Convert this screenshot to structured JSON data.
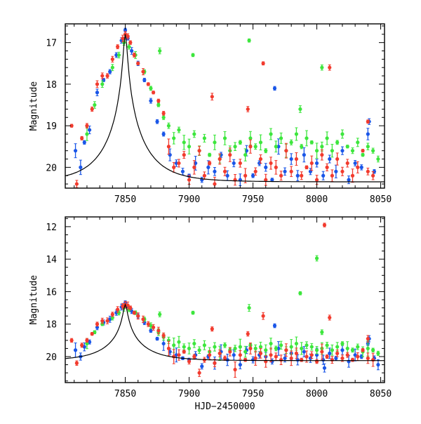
{
  "chart_data": [
    {
      "type": "scatter",
      "xlabel": "",
      "ylabel": "Magnitude",
      "xlim": [
        7803,
        8053
      ],
      "ylim": [
        20.5,
        16.55
      ],
      "y_inverted": true,
      "xticks": [
        7850,
        7900,
        7950,
        8000,
        8050
      ],
      "yticks": [
        17,
        18,
        19,
        20
      ],
      "colors": {
        "blue": "#1a56e8",
        "green": "#3de63d",
        "red": "#f23b2e",
        "model": "#000000"
      },
      "model_curve": {
        "name": "",
        "t0": 7850,
        "peak_mag": 16.8,
        "baseline_mag": 20.35,
        "u0": 0.045,
        "tE": 30
      },
      "series": [
        {
          "color": "blue",
          "x": [
            7811,
            7815,
            7818,
            7822,
            7828,
            7833,
            7838,
            7843,
            7847,
            7850,
            7852,
            7855,
            7860,
            7865,
            7870,
            7875,
            7880,
            7885,
            7890,
            7895,
            7900,
            7905,
            7910,
            7915,
            7920,
            7925,
            7930,
            7935,
            7940,
            7945,
            7950,
            7955,
            7960,
            7965,
            7970,
            7975,
            7980,
            7985,
            7990,
            7995,
            8000,
            8005,
            8010,
            8015,
            8020,
            8025,
            8030,
            8035,
            8040,
            8045,
            7967,
            8041
          ],
          "y": [
            19.6,
            20.0,
            19.4,
            19.1,
            18.2,
            17.9,
            17.7,
            17.3,
            16.95,
            16.7,
            16.9,
            17.2,
            17.5,
            17.9,
            18.4,
            18.9,
            19.2,
            19.7,
            19.9,
            20.1,
            20.2,
            19.9,
            20.3,
            20.0,
            20.1,
            19.7,
            20.2,
            19.9,
            20.3,
            19.6,
            20.2,
            19.9,
            20.0,
            20.3,
            19.5,
            20.1,
            19.8,
            20.2,
            19.7,
            20.1,
            19.9,
            20.2,
            19.8,
            20.1,
            19.6,
            20.3,
            19.9,
            20.0,
            19.2,
            20.1,
            18.1,
            18.9
          ]
        },
        {
          "color": "green",
          "x": [
            7820,
            7826,
            7832,
            7840,
            7845,
            7849,
            7853,
            7858,
            7865,
            7870,
            7876,
            7880,
            7884,
            7888,
            7892,
            7896,
            7900,
            7904,
            7908,
            7912,
            7916,
            7920,
            7924,
            7928,
            7932,
            7936,
            7940,
            7944,
            7948,
            7952,
            7956,
            7960,
            7964,
            7968,
            7972,
            7976,
            7980,
            7984,
            7988,
            7992,
            7996,
            8000,
            8004,
            8008,
            8012,
            8016,
            8020,
            8024,
            8028,
            8032,
            8036,
            8040,
            8044,
            8048,
            7877,
            7903,
            7947,
            7987,
            8004
          ],
          "y": [
            19.2,
            18.5,
            18.0,
            17.6,
            17.3,
            17.0,
            17.1,
            17.3,
            17.7,
            18.1,
            18.5,
            18.8,
            19.0,
            19.3,
            19.1,
            19.4,
            19.5,
            19.2,
            19.6,
            19.3,
            19.7,
            19.4,
            19.8,
            19.3,
            19.6,
            19.5,
            19.4,
            19.7,
            19.3,
            19.5,
            19.4,
            19.6,
            19.2,
            19.5,
            19.3,
            19.6,
            19.4,
            19.2,
            19.5,
            19.3,
            19.4,
            19.6,
            19.5,
            19.3,
            19.6,
            19.4,
            19.2,
            19.5,
            19.6,
            19.4,
            19.7,
            19.5,
            19.6,
            19.8,
            17.2,
            17.3,
            16.95,
            18.6,
            17.6
          ]
        },
        {
          "color": "red",
          "x": [
            7808,
            7812,
            7816,
            7820,
            7824,
            7828,
            7832,
            7836,
            7840,
            7844,
            7848,
            7850,
            7852,
            7854,
            7857,
            7860,
            7864,
            7868,
            7872,
            7876,
            7880,
            7884,
            7888,
            7892,
            7896,
            7900,
            7904,
            7908,
            7912,
            7916,
            7920,
            7924,
            7928,
            7932,
            7936,
            7940,
            7944,
            7948,
            7952,
            7956,
            7960,
            7964,
            7968,
            7972,
            7976,
            7980,
            7984,
            7988,
            7992,
            7996,
            8000,
            8004,
            8008,
            8012,
            8016,
            8020,
            8024,
            8028,
            8032,
            8036,
            8040,
            8044,
            7918,
            7946,
            7958,
            8010,
            8040
          ],
          "y": [
            19.0,
            20.4,
            19.3,
            19.0,
            18.6,
            18.0,
            17.8,
            17.8,
            17.4,
            17.1,
            16.9,
            16.8,
            16.85,
            17.0,
            17.3,
            17.5,
            17.7,
            18.0,
            18.2,
            18.4,
            18.7,
            19.5,
            20.0,
            19.9,
            19.7,
            20.3,
            20.0,
            19.6,
            20.2,
            19.9,
            20.4,
            19.8,
            20.1,
            19.7,
            20.3,
            19.9,
            20.2,
            19.5,
            20.1,
            19.8,
            20.3,
            19.9,
            20.0,
            20.2,
            19.6,
            20.1,
            19.8,
            20.2,
            20.0,
            19.9,
            20.3,
            19.7,
            20.0,
            20.2,
            19.8,
            20.1,
            19.9,
            20.2,
            20.0,
            19.6,
            20.1,
            20.2,
            18.3,
            18.6,
            17.5,
            17.6,
            18.9
          ]
        }
      ]
    },
    {
      "type": "scatter",
      "xlabel": "HJD−2450000",
      "ylabel": "Magnitude",
      "xlim": [
        7803,
        8053
      ],
      "ylim": [
        21.6,
        11.4
      ],
      "y_inverted": true,
      "xticks": [
        7850,
        7900,
        7950,
        8000,
        8050
      ],
      "yticks": [
        12,
        14,
        16,
        18,
        20
      ],
      "colors": {
        "blue": "#1a56e8",
        "green": "#3de63d",
        "red": "#f23b2e",
        "model": "#000000"
      },
      "model_curve": {
        "name": "",
        "t0": 7850,
        "peak_mag": 16.8,
        "baseline_mag": 20.25,
        "u0": 0.045,
        "tE": 30
      },
      "series": [
        {
          "color": "blue",
          "x": [
            7811,
            7815,
            7818,
            7822,
            7828,
            7833,
            7838,
            7843,
            7847,
            7850,
            7852,
            7855,
            7860,
            7865,
            7870,
            7875,
            7880,
            7885,
            7890,
            7895,
            7900,
            7905,
            7910,
            7915,
            7920,
            7925,
            7930,
            7935,
            7940,
            7945,
            7950,
            7955,
            7960,
            7965,
            7970,
            7975,
            7980,
            7985,
            7990,
            7995,
            8000,
            8005,
            8010,
            8015,
            8020,
            8025,
            8030,
            8035,
            8040,
            8045,
            8048,
            7967,
            8041,
            8006
          ],
          "y": [
            19.6,
            20.0,
            19.4,
            19.1,
            18.2,
            17.9,
            17.7,
            17.3,
            16.95,
            16.7,
            16.9,
            17.2,
            17.5,
            17.9,
            18.4,
            18.9,
            19.2,
            19.7,
            19.9,
            20.1,
            20.2,
            19.9,
            20.6,
            20.0,
            20.4,
            19.7,
            20.2,
            19.9,
            20.5,
            19.6,
            20.2,
            19.9,
            20.0,
            20.3,
            19.5,
            20.1,
            19.8,
            20.2,
            19.7,
            20.1,
            19.9,
            20.2,
            19.8,
            20.1,
            19.6,
            20.3,
            19.9,
            20.0,
            19.2,
            20.1,
            20.5,
            18.1,
            18.9,
            20.7
          ]
        },
        {
          "color": "green",
          "x": [
            7820,
            7826,
            7832,
            7840,
            7845,
            7849,
            7853,
            7858,
            7865,
            7870,
            7876,
            7880,
            7884,
            7888,
            7892,
            7896,
            7900,
            7904,
            7908,
            7912,
            7916,
            7920,
            7924,
            7928,
            7932,
            7936,
            7940,
            7944,
            7948,
            7952,
            7956,
            7960,
            7964,
            7968,
            7972,
            7976,
            7980,
            7984,
            7988,
            7992,
            7996,
            8000,
            8004,
            8008,
            8012,
            8016,
            8020,
            8024,
            8028,
            8032,
            8036,
            8040,
            8044,
            8048,
            7877,
            7903,
            7947,
            7987,
            8000,
            8004
          ],
          "y": [
            19.2,
            18.5,
            18.0,
            17.6,
            17.3,
            17.0,
            17.1,
            17.3,
            17.7,
            18.1,
            18.5,
            18.8,
            19.0,
            19.3,
            19.1,
            19.4,
            19.5,
            19.2,
            19.6,
            19.3,
            19.7,
            19.4,
            19.8,
            19.3,
            19.6,
            19.5,
            19.4,
            19.7,
            19.3,
            19.5,
            19.4,
            19.6,
            19.2,
            19.5,
            19.3,
            19.6,
            19.4,
            19.2,
            19.5,
            19.3,
            19.4,
            19.6,
            19.5,
            19.3,
            19.6,
            19.4,
            19.2,
            19.5,
            19.6,
            19.4,
            19.7,
            19.5,
            19.6,
            19.8,
            17.4,
            17.3,
            17.0,
            16.1,
            13.95,
            18.5
          ]
        },
        {
          "color": "red",
          "x": [
            7808,
            7812,
            7816,
            7820,
            7824,
            7828,
            7832,
            7836,
            7840,
            7844,
            7848,
            7850,
            7852,
            7854,
            7857,
            7860,
            7864,
            7868,
            7872,
            7876,
            7880,
            7884,
            7888,
            7892,
            7896,
            7900,
            7904,
            7908,
            7912,
            7916,
            7920,
            7924,
            7928,
            7932,
            7936,
            7940,
            7944,
            7948,
            7952,
            7956,
            7960,
            7964,
            7968,
            7972,
            7976,
            7980,
            7984,
            7988,
            7992,
            7996,
            8000,
            8004,
            8008,
            8012,
            8016,
            8020,
            8024,
            8028,
            8032,
            8036,
            8040,
            8044,
            7918,
            7946,
            7958,
            8010,
            8040,
            8006
          ],
          "y": [
            19.0,
            20.4,
            19.3,
            19.0,
            18.6,
            18.0,
            17.8,
            17.8,
            17.4,
            17.1,
            16.9,
            16.8,
            16.85,
            17.0,
            17.3,
            17.5,
            17.7,
            18.0,
            18.2,
            18.4,
            18.7,
            19.5,
            20.0,
            19.9,
            19.7,
            20.3,
            20.0,
            21.0,
            20.2,
            19.9,
            20.4,
            19.8,
            20.1,
            19.7,
            20.8,
            19.9,
            20.2,
            19.5,
            20.1,
            19.8,
            20.3,
            19.9,
            20.0,
            20.2,
            19.6,
            20.1,
            19.8,
            20.2,
            20.0,
            19.9,
            20.3,
            19.7,
            20.0,
            20.2,
            19.8,
            20.1,
            19.9,
            20.2,
            20.0,
            19.6,
            20.1,
            20.2,
            18.3,
            18.6,
            17.5,
            17.6,
            18.9,
            11.9
          ]
        }
      ]
    }
  ]
}
